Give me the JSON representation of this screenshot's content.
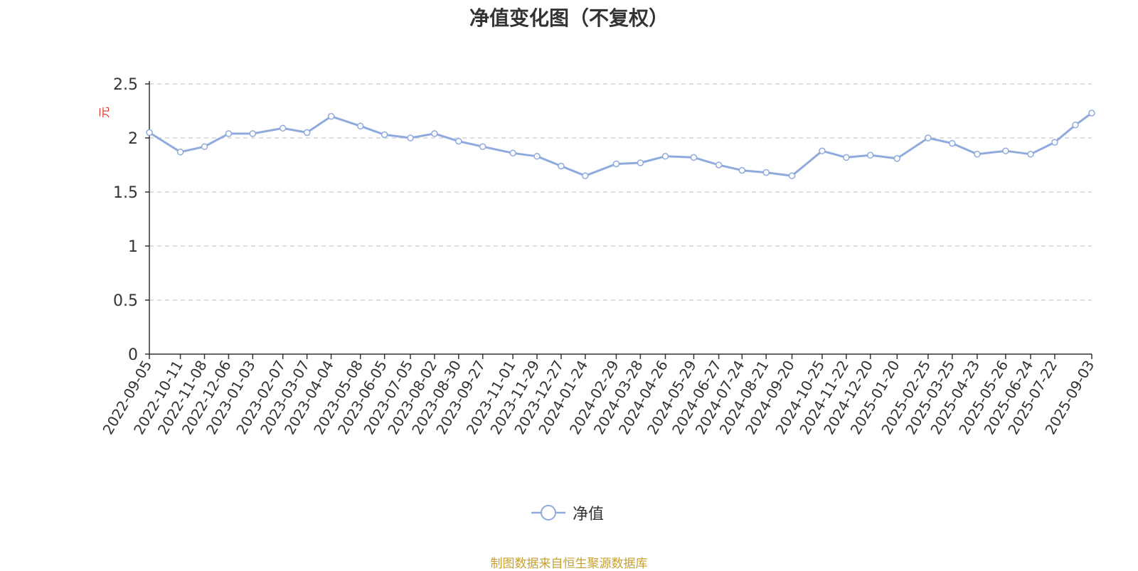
{
  "chart_data": {
    "type": "line",
    "title": "净值变化图（不复权）",
    "ylabel": "元",
    "ylim": [
      0,
      2.5
    ],
    "yticks": [
      "0",
      "0.5",
      "1",
      "1.5",
      "2",
      "2.5"
    ],
    "grid": true,
    "legend_position": "bottom-center",
    "xticks": [
      "2022-09-05",
      "2022-10-11",
      "2022-11-08",
      "2022-12-06",
      "2023-01-03",
      "2023-02-07",
      "2023-03-07",
      "2023-04-04",
      "2023-05-08",
      "2023-06-05",
      "2023-07-05",
      "2023-08-02",
      "2023-08-30",
      "2023-09-27",
      "2023-11-01",
      "2023-11-29",
      "2023-12-27",
      "2024-01-24",
      "2024-02-29",
      "2024-03-28",
      "2024-04-26",
      "2024-05-29",
      "2024-06-27",
      "2024-07-24",
      "2024-08-21",
      "2024-09-20",
      "2024-10-25",
      "2024-11-22",
      "2024-12-20",
      "2025-01-20",
      "2025-02-25",
      "2025-03-25",
      "2025-04-23",
      "2025-05-26",
      "2025-06-24",
      "2025-07-22",
      "2025-09-03"
    ],
    "series": [
      {
        "name": "净值",
        "color": "#8faadc",
        "x": [
          "2022-09-05",
          "2022-10-11",
          "2022-11-08",
          "2022-12-06",
          "2023-01-03",
          "2023-02-07",
          "2023-03-07",
          "2023-04-04",
          "2023-05-08",
          "2023-06-05",
          "2023-07-05",
          "2023-08-02",
          "2023-08-30",
          "2023-09-27",
          "2023-11-01",
          "2023-11-29",
          "2023-12-27",
          "2024-01-24",
          "2024-02-29",
          "2024-03-28",
          "2024-04-26",
          "2024-05-29",
          "2024-06-27",
          "2024-07-24",
          "2024-08-21",
          "2024-09-20",
          "2024-10-25",
          "2024-11-22",
          "2024-12-20",
          "2025-01-20",
          "2025-02-25",
          "2025-03-25",
          "2025-04-23",
          "2025-05-26",
          "2025-06-24",
          "2025-07-22",
          "2025-08-15",
          "2025-09-03"
        ],
        "values": [
          2.05,
          1.87,
          1.92,
          2.04,
          2.04,
          2.09,
          2.05,
          2.2,
          2.11,
          2.03,
          2.0,
          2.04,
          1.97,
          1.92,
          1.86,
          1.83,
          1.74,
          1.65,
          1.76,
          1.77,
          1.83,
          1.82,
          1.75,
          1.7,
          1.68,
          1.65,
          1.88,
          1.82,
          1.84,
          1.81,
          2.0,
          1.95,
          1.85,
          1.88,
          1.85,
          1.96,
          2.12,
          2.23
        ]
      }
    ]
  },
  "source_note": "制图数据来自恒生聚源数据库",
  "source_color": "#c8a030"
}
